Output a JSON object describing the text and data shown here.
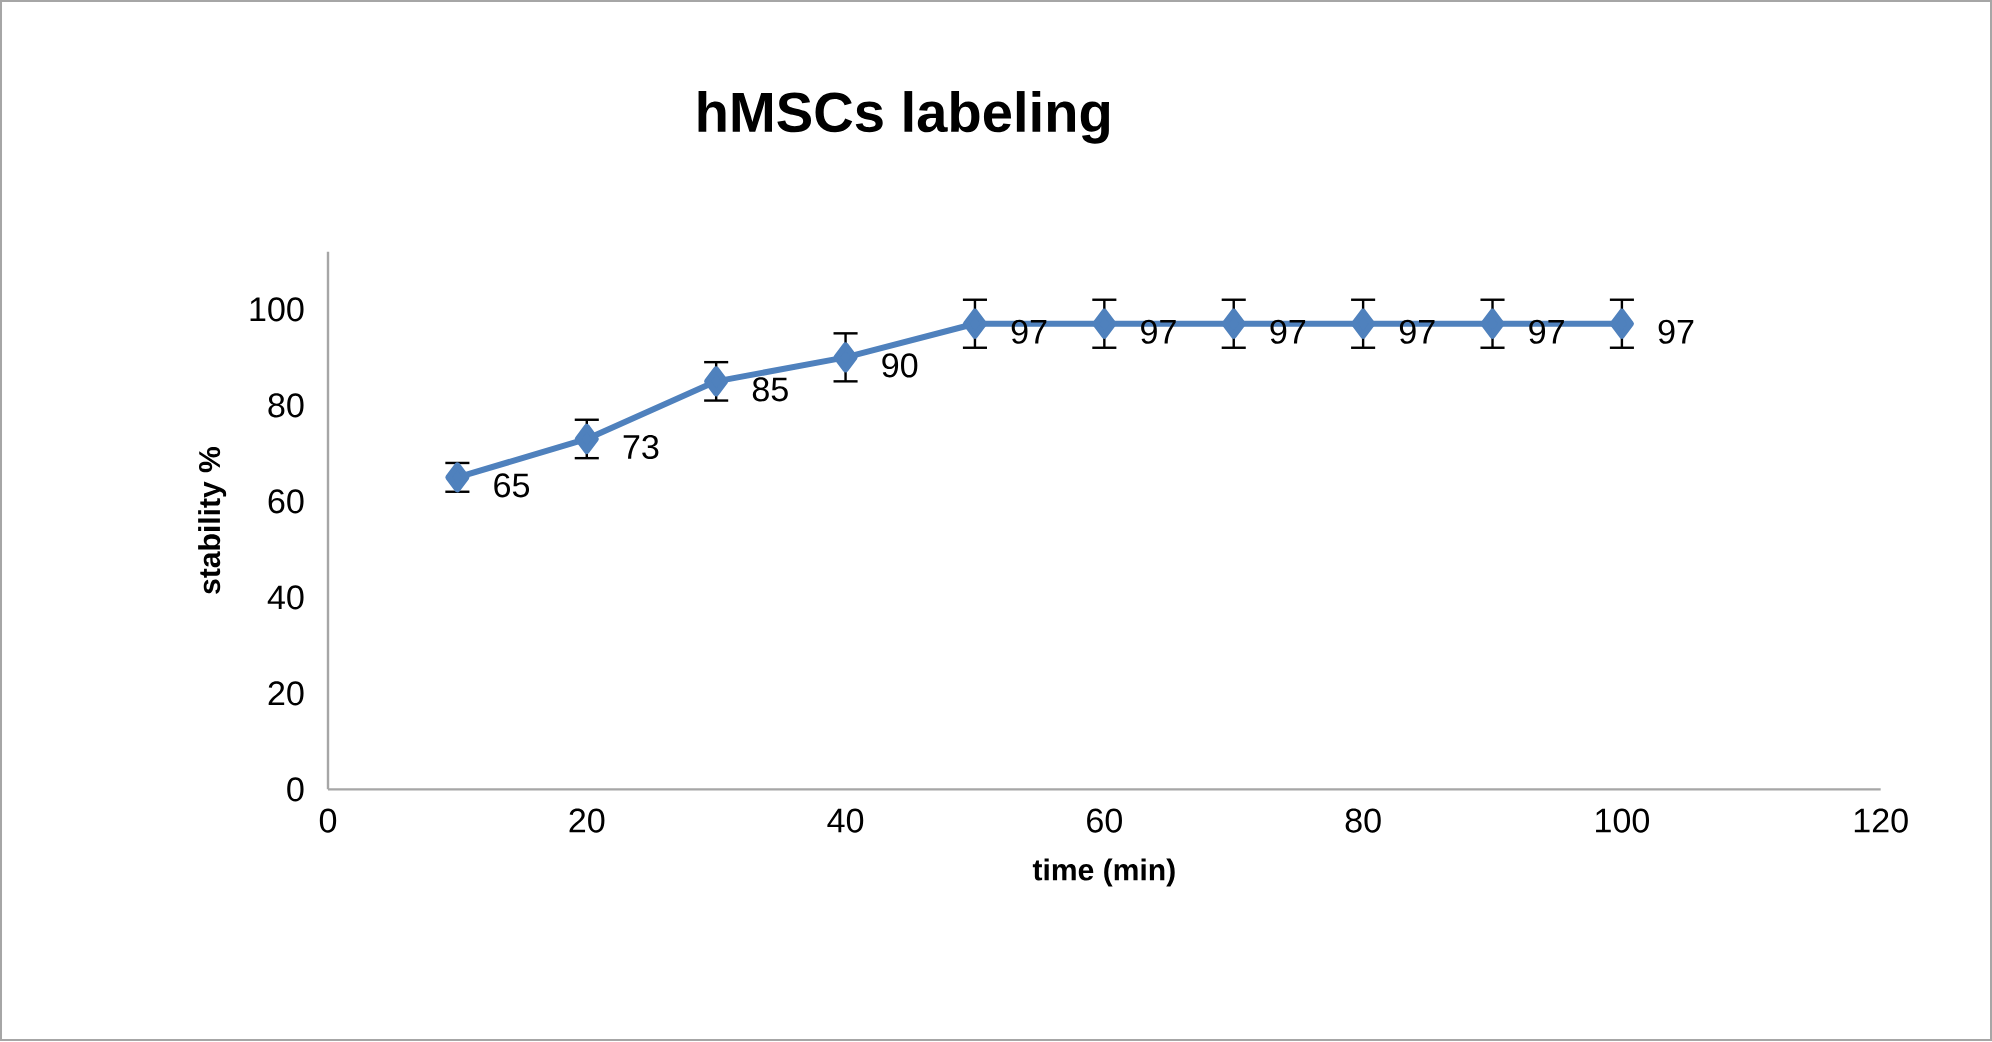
{
  "chart_data": {
    "type": "line",
    "title": "hMSCs labeling",
    "xlabel": "time (min)",
    "ylabel": "stability %",
    "x": [
      10,
      20,
      30,
      40,
      50,
      60,
      70,
      80,
      90,
      100
    ],
    "values": [
      65,
      73,
      85,
      90,
      97,
      97,
      97,
      97,
      97,
      97
    ],
    "errors": [
      3,
      4,
      4,
      5,
      5,
      5,
      5,
      5,
      5,
      5
    ],
    "color": "#4f81bd",
    "marker": "diamond",
    "line_style": "solid",
    "data_labels": true,
    "grid": false,
    "xlim": [
      0,
      120
    ],
    "xticks": [
      0,
      20,
      40,
      60,
      80,
      100,
      120
    ],
    "ylim": [
      0,
      112
    ],
    "yticks": [
      0,
      20,
      40,
      60,
      80,
      100
    ]
  }
}
